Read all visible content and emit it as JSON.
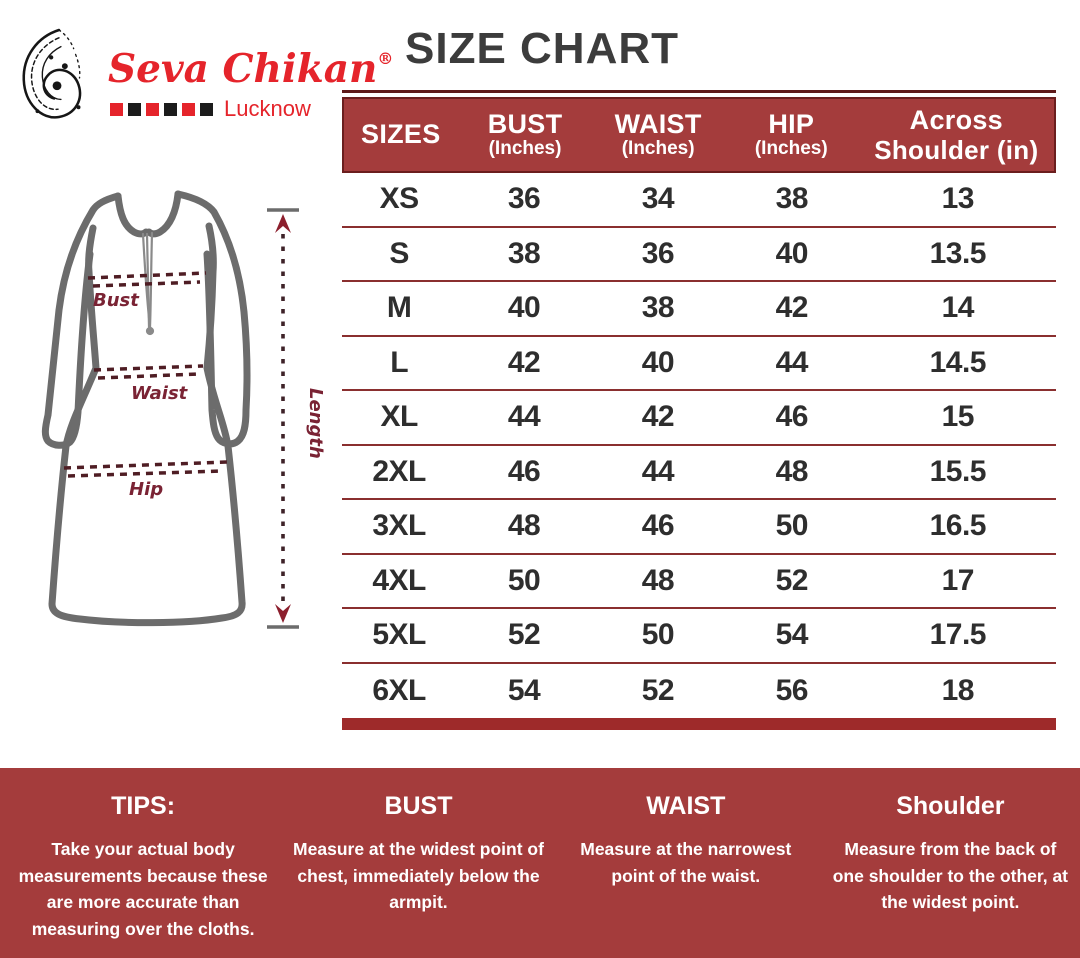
{
  "brand": {
    "name": "Seva Chikan",
    "registered": "®",
    "city": "Lucknow"
  },
  "title": "SIZE CHART",
  "diagram": {
    "labels": {
      "bust": "Bust",
      "waist": "Waist",
      "hip": "Hip",
      "length": "Length"
    }
  },
  "table": {
    "headers": [
      {
        "line1": "SIZES",
        "line2": ""
      },
      {
        "line1": "BUST",
        "line2": "(Inches)"
      },
      {
        "line1": "WAIST",
        "line2": "(Inches)"
      },
      {
        "line1": "HIP",
        "line2": "(Inches)"
      },
      {
        "line1": "Across",
        "line2": "Shoulder (in)"
      }
    ],
    "rows": [
      {
        "size": "XS",
        "bust": "36",
        "waist": "34",
        "hip": "38",
        "shoulder": "13"
      },
      {
        "size": "S",
        "bust": "38",
        "waist": "36",
        "hip": "40",
        "shoulder": "13.5"
      },
      {
        "size": "M",
        "bust": "40",
        "waist": "38",
        "hip": "42",
        "shoulder": "14"
      },
      {
        "size": "L",
        "bust": "42",
        "waist": "40",
        "hip": "44",
        "shoulder": "14.5"
      },
      {
        "size": "XL",
        "bust": "44",
        "waist": "42",
        "hip": "46",
        "shoulder": "15"
      },
      {
        "size": "2XL",
        "bust": "46",
        "waist": "44",
        "hip": "48",
        "shoulder": "15.5"
      },
      {
        "size": "3XL",
        "bust": "48",
        "waist": "46",
        "hip": "50",
        "shoulder": "16.5"
      },
      {
        "size": "4XL",
        "bust": "50",
        "waist": "48",
        "hip": "52",
        "shoulder": "17"
      },
      {
        "size": "5XL",
        "bust": "52",
        "waist": "50",
        "hip": "54",
        "shoulder": "17.5"
      },
      {
        "size": "6XL",
        "bust": "54",
        "waist": "52",
        "hip": "56",
        "shoulder": "18"
      }
    ]
  },
  "tips": {
    "columns": [
      {
        "heading": "TIPS:",
        "body": "Take your actual body measurements because these are more accurate than measuring over the cloths."
      },
      {
        "heading": "BUST",
        "body": "Measure at the widest point of chest, immediately below the armpit."
      },
      {
        "heading": "WAIST",
        "body": "Measure at the narrowest point of the waist."
      },
      {
        "heading": "Shoulder",
        "body": "Measure from the back of one shoulder to the other, at the widest point."
      }
    ]
  },
  "colors": {
    "brand_red": "#E5242B",
    "band_red": "#A43C3C",
    "band_border": "#6B1E1E",
    "row_separator": "#8A2F2F",
    "thick_bar": "#9E2A2A",
    "title_gray": "#3C3C3C",
    "cell_text": "#2E2E2E",
    "garment_gray": "#6C6C6C",
    "diagram_maroon": "#7A2334"
  }
}
